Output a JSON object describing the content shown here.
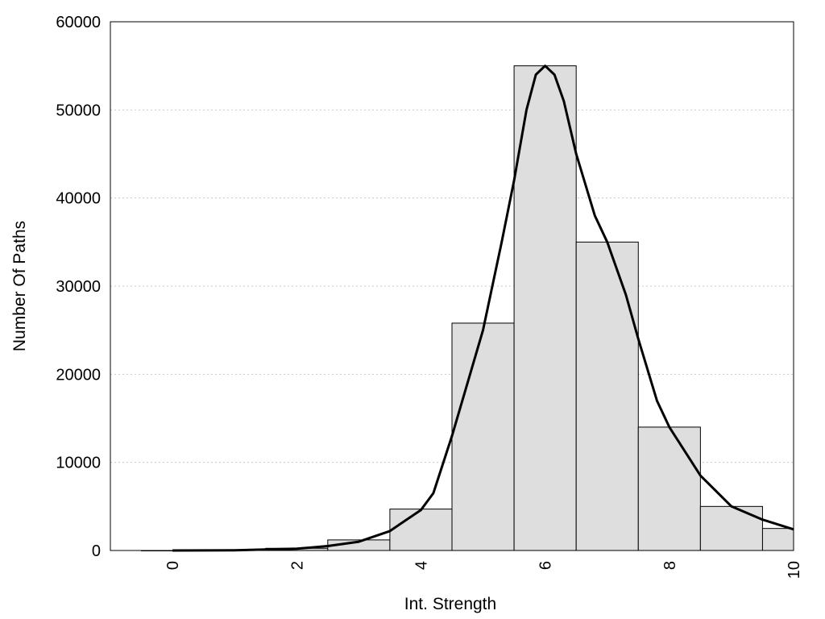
{
  "chart_data": {
    "type": "bar",
    "xlabel": "Int. Strength",
    "ylabel": "Number Of Paths",
    "xlim": [
      -1,
      10
    ],
    "ylim": [
      0,
      60000
    ],
    "x_ticks": [
      "0",
      "2",
      "4",
      "6",
      "8",
      "10"
    ],
    "y_ticks": [
      "0",
      "10000",
      "20000",
      "30000",
      "40000",
      "50000",
      "60000"
    ],
    "grid": "horizontal dotted",
    "bar_color": "#dedede",
    "bar_edge_color": "#000000",
    "line_color": "#000000",
    "bars": [
      {
        "x": 0,
        "value": 0
      },
      {
        "x": 1,
        "value": 50
      },
      {
        "x": 2,
        "value": 250
      },
      {
        "x": 3,
        "value": 1200
      },
      {
        "x": 4,
        "value": 4700
      },
      {
        "x": 5,
        "value": 25800
      },
      {
        "x": 6,
        "value": 55000
      },
      {
        "x": 7,
        "value": 35000
      },
      {
        "x": 8,
        "value": 14000
      },
      {
        "x": 9,
        "value": 5000
      },
      {
        "x": 10,
        "value": 2500
      }
    ],
    "curve": [
      [
        0,
        0
      ],
      [
        1,
        30
      ],
      [
        2,
        200
      ],
      [
        2.5,
        500
      ],
      [
        3,
        1000
      ],
      [
        3.5,
        2200
      ],
      [
        4,
        4600
      ],
      [
        4.2,
        6500
      ],
      [
        4.5,
        13000
      ],
      [
        5,
        25000
      ],
      [
        5.3,
        35000
      ],
      [
        5.5,
        42000
      ],
      [
        5.7,
        50000
      ],
      [
        5.85,
        54000
      ],
      [
        6,
        55000
      ],
      [
        6.15,
        54000
      ],
      [
        6.3,
        51000
      ],
      [
        6.5,
        45000
      ],
      [
        6.8,
        38000
      ],
      [
        7,
        35000
      ],
      [
        7.3,
        29000
      ],
      [
        7.5,
        24000
      ],
      [
        7.8,
        17000
      ],
      [
        8,
        14000
      ],
      [
        8.5,
        8500
      ],
      [
        9,
        5000
      ],
      [
        9.5,
        3500
      ],
      [
        10,
        2400
      ]
    ]
  }
}
